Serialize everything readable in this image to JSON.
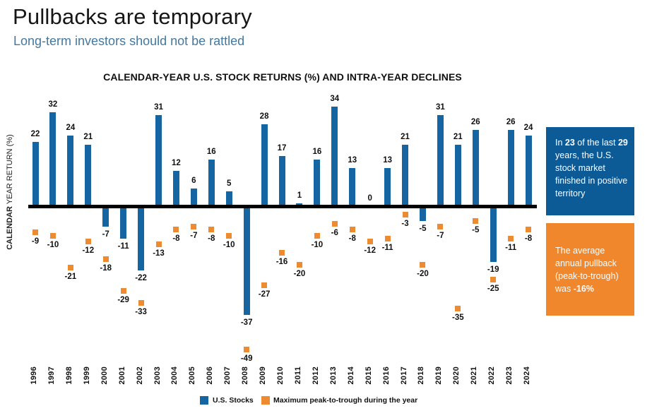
{
  "page": {
    "title": "Pullbacks are temporary",
    "subtitle": "Long-term investors should not be rattled"
  },
  "chart": {
    "title": "CALENDAR-YEAR U.S. STOCK RETURNS (%) AND INTRA-YEAR DECLINES",
    "y_axis_label_bold": "CALENDAR",
    "y_axis_label_rest": " YEAR RETURN (%)"
  },
  "legend": {
    "us_stocks": "U.S. Stocks",
    "max_pullback": "Maximum peak-to-trough during the year"
  },
  "callouts": {
    "positive_years": {
      "segments": [
        {
          "text": "In ",
          "bold": false
        },
        {
          "text": "23",
          "bold": true
        },
        {
          "text": " of the last ",
          "bold": false
        },
        {
          "text": "29",
          "bold": true
        },
        {
          "text": " years, the U.S. stock market finished in positive territory",
          "bold": false
        }
      ]
    },
    "average_pullback": {
      "segments": [
        {
          "text": "The average annual pullback (peak-to-trough) was ",
          "bold": false
        },
        {
          "text": "-16%",
          "bold": true
        }
      ]
    }
  },
  "colors": {
    "bar_blue": "#1565A3",
    "marker_orange": "#EE8A30",
    "box_blue": "#0C5A96",
    "box_orange": "#F0872D",
    "subtitle_blue": "#44789F",
    "axis_line": "#000000"
  },
  "chart_data": {
    "type": "bar",
    "title": "CALENDAR-YEAR U.S. STOCK RETURNS (%) AND INTRA-YEAR DECLINES",
    "xlabel": "",
    "ylabel": "CALENDAR YEAR RETURN (%)",
    "ylim": [
      -55,
      40
    ],
    "grid": false,
    "legend_position": "bottom",
    "categories": [
      "1996",
      "1997",
      "1998",
      "1999",
      "2000",
      "2001",
      "2002",
      "2003",
      "2004",
      "2005",
      "2006",
      "2007",
      "2008",
      "2009",
      "2010",
      "2011",
      "2012",
      "2013",
      "2014",
      "2015",
      "2016",
      "2017",
      "2018",
      "2019",
      "2020",
      "2021",
      "2022",
      "2023",
      "2024"
    ],
    "series": [
      {
        "name": "U.S. Stocks",
        "type": "bar",
        "color": "#1565A3",
        "values": [
          22,
          32,
          24,
          21,
          -7,
          -11,
          -22,
          31,
          12,
          6,
          16,
          5,
          -37,
          28,
          17,
          1,
          16,
          34,
          13,
          0,
          13,
          21,
          -5,
          31,
          21,
          26,
          -19,
          26,
          24
        ]
      },
      {
        "name": "Maximum peak-to-trough during the year",
        "type": "scatter",
        "color": "#EE8A30",
        "values": [
          -9,
          -10,
          -21,
          -12,
          -18,
          -29,
          -33,
          -13,
          -8,
          -7,
          -8,
          -10,
          -49,
          -27,
          -16,
          -20,
          -10,
          -6,
          -8,
          -12,
          -11,
          -3,
          -20,
          -7,
          -35,
          -5,
          -25,
          -11,
          -8
        ]
      }
    ]
  }
}
